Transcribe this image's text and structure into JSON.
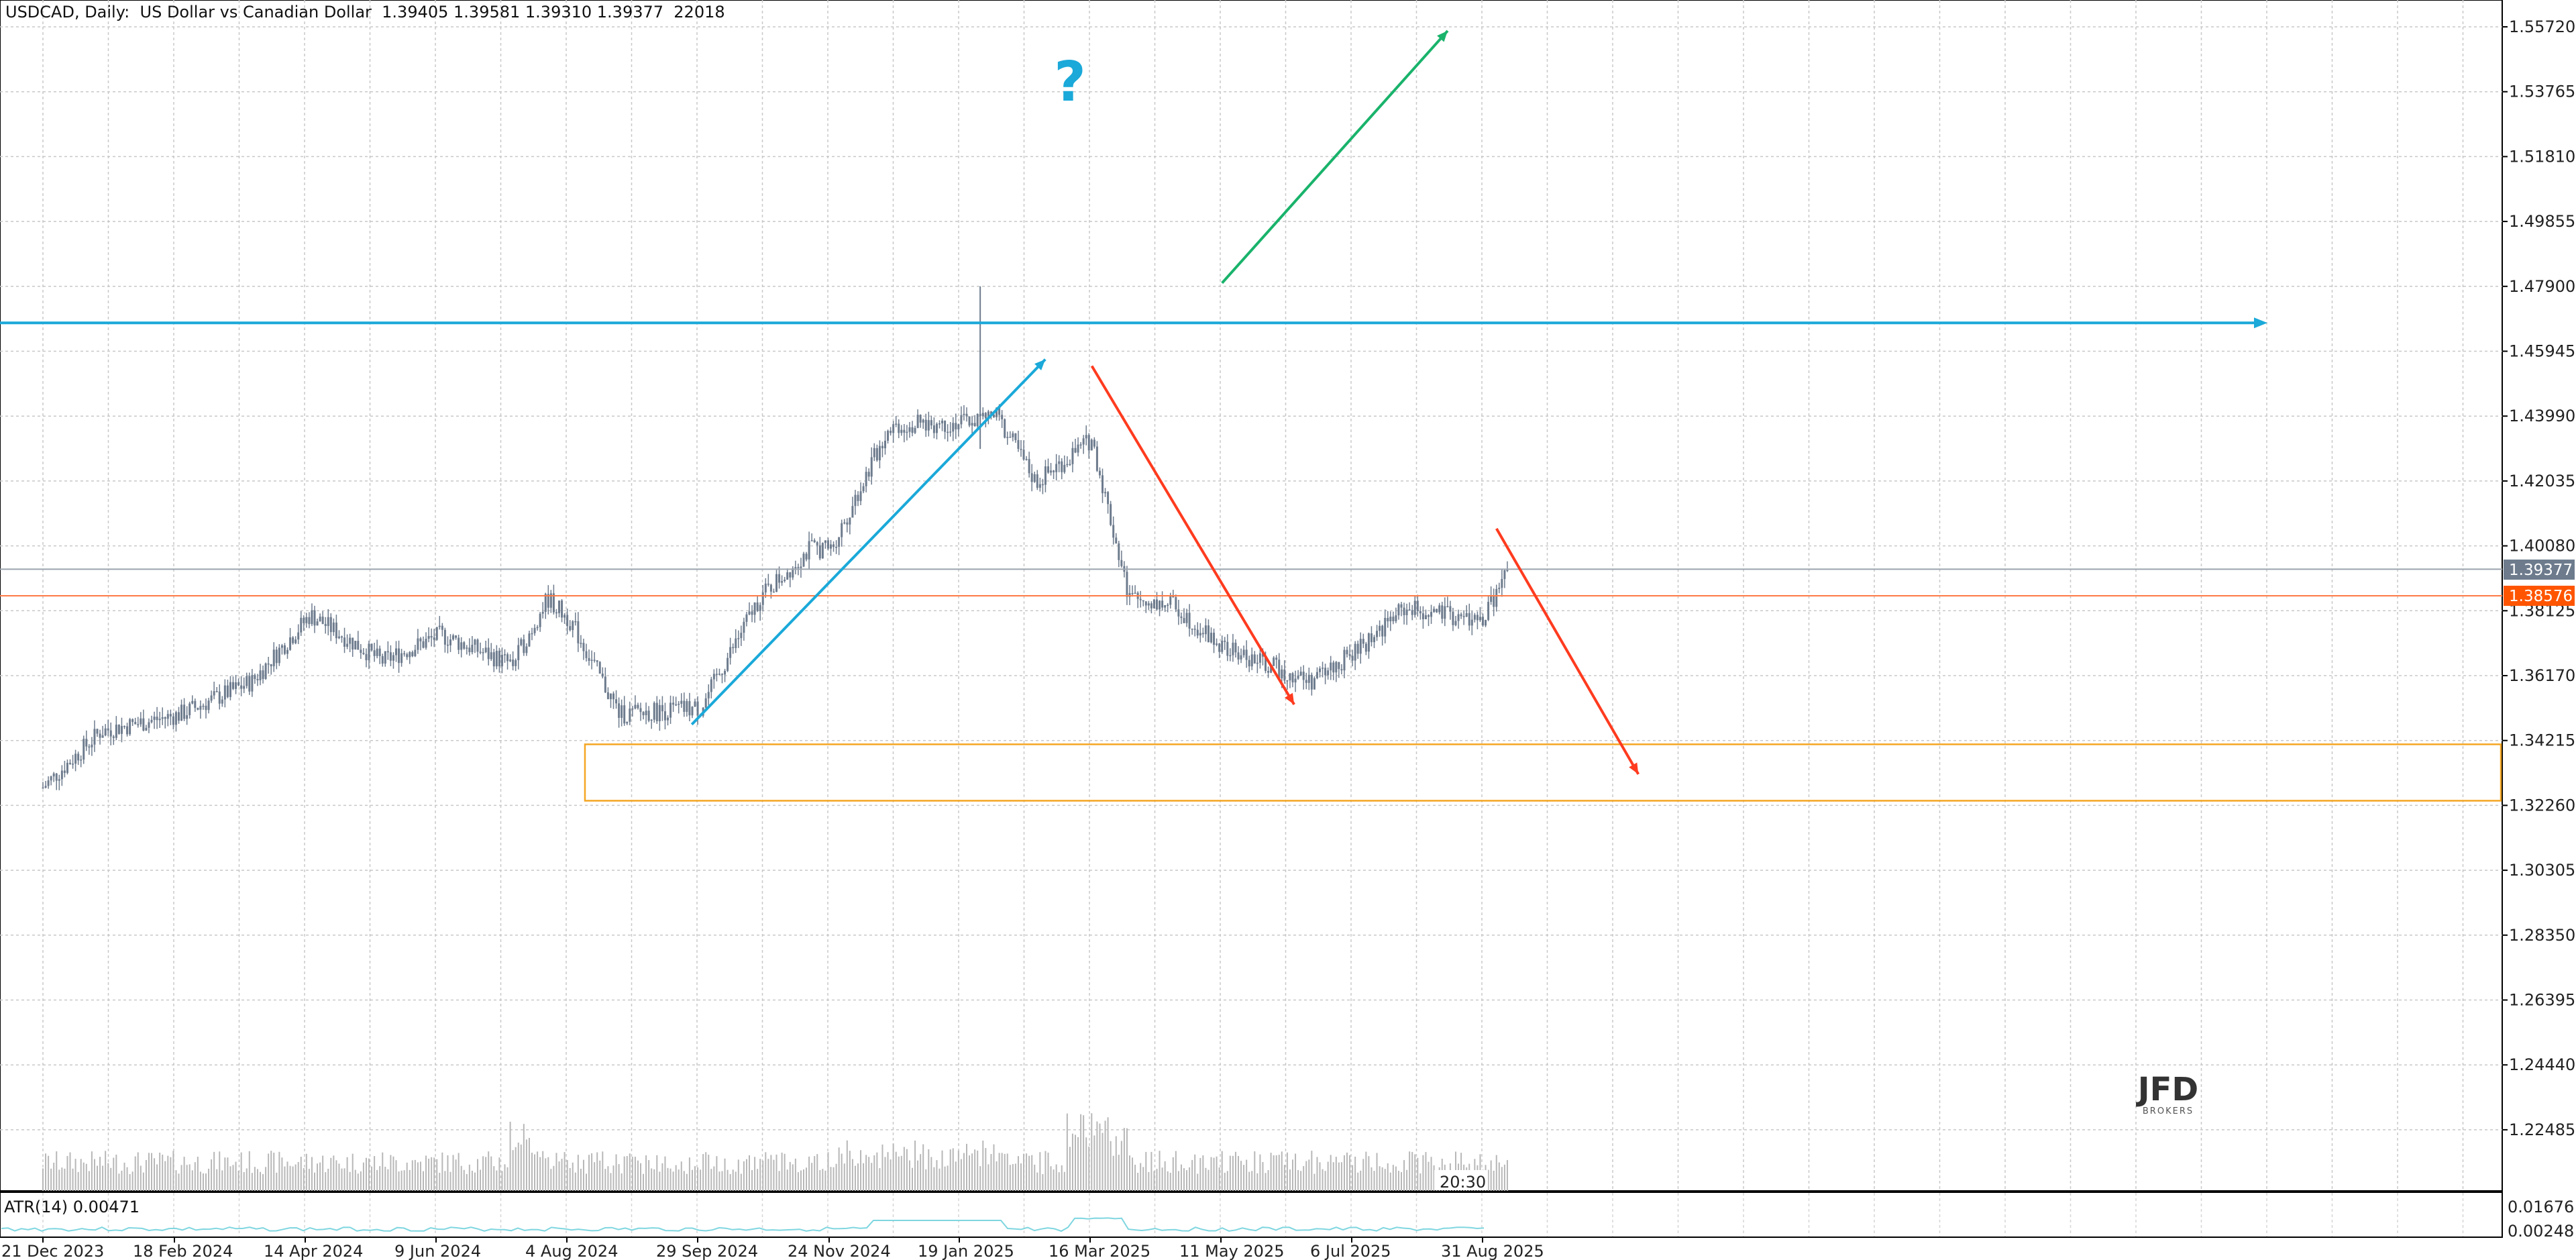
{
  "header": {
    "symbol": "USDCAD",
    "timeframe": "Daily",
    "description": "US Dollar vs Canadian Dollar",
    "open": "1.39405",
    "high": "1.39581",
    "low": "1.39310",
    "close": "1.39377",
    "volume": "22018",
    "title_line": "USDCAD, Daily:  US Dollar vs Canadian Dollar  1.39405 1.39581 1.39310 1.39377  22018"
  },
  "current_price_tag": "1.39377",
  "level_tag": "1.38576",
  "level_tag_color": "#ff5500",
  "price_tag_color": "#6d7b8d",
  "annotation_question": "?",
  "annotation_question_color": "#1aa9d9",
  "volume_timer": "20:30",
  "indicator": {
    "label": "ATR(14) 0.00471",
    "axis_top": "0.01676",
    "axis_bottom": "0.00248"
  },
  "logo": {
    "text": "JFD",
    "subtext": "BROKERS"
  },
  "colors": {
    "candle": "#6d7b8d",
    "grid": "#c8c8c8",
    "volume": "#b7b7b7",
    "blue_line": "#1aa9d9",
    "green_arrow": "#19b36b",
    "red_arrow": "#ff3b1f",
    "orange_box": "#f5a623",
    "atr": "#7fd6e0"
  },
  "chart_data": {
    "type": "candlestick",
    "symbol": "USDCAD",
    "timeframe": "Daily",
    "y_ticks": [
      "1.55720",
      "1.53765",
      "1.51810",
      "1.49855",
      "1.47900",
      "1.45945",
      "1.43990",
      "1.42035",
      "1.40080",
      "1.38125",
      "1.36170",
      "1.34215",
      "1.32260",
      "1.30305",
      "1.28350",
      "1.26395",
      "1.24440",
      "1.22485"
    ],
    "x_ticks": [
      "21 Dec 2023",
      "18 Feb 2024",
      "14 Apr 2024",
      "9 Jun 2024",
      "4 Aug 2024",
      "29 Sep 2024",
      "24 Nov 2024",
      "19 Jan 2025",
      "16 Mar 2025",
      "11 May 2025",
      "6 Jul 2025",
      "31 Aug 2025"
    ],
    "ylim": [
      1.215,
      1.574
    ],
    "price_path": [
      {
        "date": "21 Dec 2023",
        "close": 1.328
      },
      {
        "date": "15 Jan 2024",
        "close": 1.345
      },
      {
        "date": "18 Feb 2024",
        "close": 1.35
      },
      {
        "date": "20 Mar 2024",
        "close": 1.36
      },
      {
        "date": "14 Apr 2024",
        "close": 1.38
      },
      {
        "date": "15 May 2024",
        "close": 1.366
      },
      {
        "date": "9 Jun 2024",
        "close": 1.374
      },
      {
        "date": "10 Jul 2024",
        "close": 1.365
      },
      {
        "date": "25 Jul 2024",
        "close": 1.385
      },
      {
        "date": "4 Aug 2024",
        "close": 1.378
      },
      {
        "date": "25 Aug 2024",
        "close": 1.35
      },
      {
        "date": "29 Sep 2024",
        "close": 1.352
      },
      {
        "date": "24 Oct 2024",
        "close": 1.385
      },
      {
        "date": "15 Nov 2024",
        "close": 1.4
      },
      {
        "date": "24 Nov 2024",
        "close": 1.4
      },
      {
        "date": "19 Dec 2024",
        "close": 1.437
      },
      {
        "date": "19 Jan 2025",
        "close": 1.438
      },
      {
        "date": "3 Feb 2025",
        "close": 1.44
      },
      {
        "date": "20 Feb 2025",
        "close": 1.42
      },
      {
        "date": "16 Mar 2025",
        "close": 1.433
      },
      {
        "date": "1 Apr 2025",
        "close": 1.385
      },
      {
        "date": "20 Apr 2025",
        "close": 1.383
      },
      {
        "date": "11 May 2025",
        "close": 1.37
      },
      {
        "date": "18 Jun 2025",
        "close": 1.36
      },
      {
        "date": "6 Jul 2025",
        "close": 1.368
      },
      {
        "date": "28 Jul 2025",
        "close": 1.382
      },
      {
        "date": "31 Aug 2025",
        "close": 1.378
      },
      {
        "date": "11 Sep 2025",
        "close": 1.3938
      }
    ],
    "annotations": {
      "horizontal_line": {
        "price": 1.468,
        "color": "#1aa9d9"
      },
      "current_price_line": {
        "price": 1.39377
      },
      "level_line": {
        "price": 1.38576,
        "color": "#ff5500"
      },
      "support_zone": {
        "from": "4 Aug 2024",
        "price_top": 1.341,
        "price_bottom": 1.324,
        "color": "#f5a623"
      },
      "arrows": [
        {
          "name": "up-trend-blue",
          "color": "#1aa9d9",
          "from": {
            "date": "25 Sep 2024",
            "price": 1.347
          },
          "to": {
            "date": "24 Feb 2025",
            "price": 1.457
          }
        },
        {
          "name": "down-trend-red",
          "color": "#ff3b1f",
          "from": {
            "date": "16 Mar 2025",
            "price": 1.455
          },
          "to": {
            "date": "11 Jun 2025",
            "price": 1.353
          }
        },
        {
          "name": "projected-up-green",
          "color": "#19b36b",
          "from": {
            "date": "11 May 2025",
            "price": 1.48
          },
          "to": {
            "date": "16 Aug 2025",
            "price": 1.556
          }
        },
        {
          "name": "projected-down-red",
          "color": "#ff3b1f",
          "from": {
            "date": "6 Sep 2025",
            "price": 1.406
          },
          "to": {
            "date": "6 Nov 2025",
            "price": 1.332
          }
        }
      ]
    },
    "indicator": {
      "name": "ATR(14)",
      "value": 0.00471,
      "range": [
        0.00248,
        0.01676
      ]
    }
  }
}
